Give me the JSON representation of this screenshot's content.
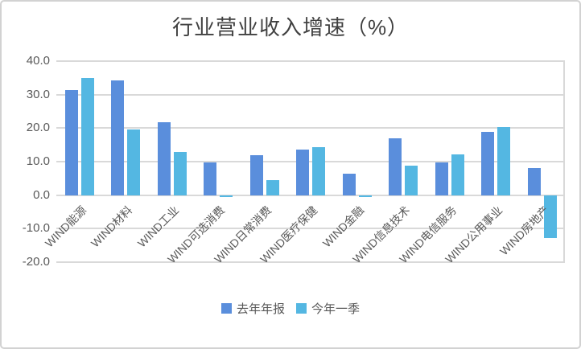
{
  "title": "行业营业收入增速（%）",
  "chart_data": {
    "type": "bar",
    "title": "行业营业收入增速（%）",
    "categories": [
      "WIND能源",
      "WIND材料",
      "WIND工业",
      "WIND可选消费",
      "WIND日常消费",
      "WIND医疗保健",
      "WIND金融",
      "WIND信息技术",
      "WIND电信服务",
      "WIND公用事业",
      "WIND房地产"
    ],
    "series": [
      {
        "name": "去年年报",
        "color": "#5a8edc",
        "values": [
          31.4,
          34.2,
          21.7,
          9.8,
          12.0,
          13.5,
          6.3,
          17.0,
          9.7,
          19.0,
          8.0
        ]
      },
      {
        "name": "今年一季",
        "color": "#54b7e2",
        "values": [
          35.0,
          19.5,
          12.9,
          -0.5,
          4.5,
          14.4,
          -0.5,
          8.8,
          12.1,
          20.4,
          -12.7
        ]
      }
    ],
    "ylim": [
      -20,
      40
    ],
    "ytick_step": 10,
    "ytick_labels": [
      "40.0",
      "30.0",
      "20.0",
      "10.0",
      "0.0",
      "-10.0",
      "-20.0"
    ],
    "xlabel": "",
    "ylabel": "",
    "grid": true,
    "legend_position": "bottom"
  },
  "colors": {
    "grid": "#d9d9d9",
    "axis_text": "#595959",
    "title_text": "#404040",
    "card_border": "#d2d2d2",
    "background": "#ffffff"
  }
}
